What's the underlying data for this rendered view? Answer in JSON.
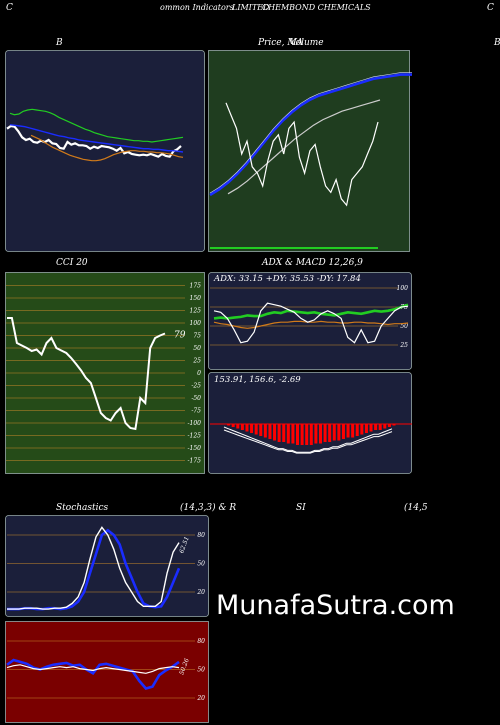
{
  "header": {
    "left_letter": "C",
    "text_a": "ommon  Indicators",
    "text_b": "LIMITED",
    "text_c": "CHEMBOND CHEMICALS",
    "right_letter": "C"
  },
  "labels": {
    "bb": "B",
    "price_ma": "Price,  MA",
    "price_overlay": "Volume",
    "right_cut": "B",
    "cci": "CCI 20",
    "adx_macd": "ADX  & MACD 12,26,9",
    "adx_values": "ADX: 33.15  +DY: 35.53  -DY: 17.84",
    "macd_values": "153.91,  156.6,  -2.69",
    "stochastics": "Stochastics",
    "stoch_params": "(14,3,3) & R",
    "si": "SI",
    "rsi_params": "(14,5",
    "watermark": "MunafaSutra.com"
  },
  "colors": {
    "navy_bg": "#1b1f3a",
    "green_bg": "#1f3d1f",
    "cci_bg": "#254b18",
    "rsi_bg": "#7a0000",
    "blue": "#1a2cff",
    "green": "#22cc22",
    "orange": "#d07a1a",
    "white": "#ffffff",
    "red": "#ff0000"
  },
  "chart_data": [
    {
      "type": "line",
      "title": "B",
      "series": [
        {
          "color": "#ffffff",
          "values": [
            118,
            114,
            115,
            122,
            131,
            135,
            133,
            138,
            139,
            136,
            138,
            135,
            140,
            141,
            147,
            148,
            138,
            142,
            140,
            143,
            143,
            144,
            148,
            145,
            147,
            144,
            145,
            146,
            148,
            151,
            147,
            155,
            153,
            156,
            157,
            158,
            157,
            158,
            156,
            158,
            160,
            156,
            159,
            160,
            152,
            149,
            144
          ]
        },
        {
          "color": "#22cc22",
          "values": [
            95,
            97,
            96,
            92,
            90,
            89,
            90,
            91,
            92,
            94,
            97,
            101,
            104,
            107,
            110,
            113,
            116,
            119,
            121,
            124,
            126,
            128,
            130,
            131,
            132,
            133,
            134,
            135,
            136,
            136,
            137,
            137,
            138,
            137,
            136,
            135,
            134,
            133,
            132,
            131
          ]
        },
        {
          "color": "#1a2cff",
          "values": [
            112,
            113,
            114,
            115,
            117,
            119,
            121,
            123,
            125,
            127,
            129,
            130,
            132,
            133,
            135,
            136,
            137,
            138,
            139,
            140,
            141,
            142,
            143,
            144,
            145,
            146,
            147,
            148,
            148,
            149,
            149,
            150,
            151,
            151,
            152,
            153
          ]
        },
        {
          "color": "#d07a1a",
          "values": [
            128,
            131,
            134,
            138,
            142,
            146,
            149,
            152,
            155,
            158,
            160,
            162,
            164,
            165,
            166,
            166,
            165,
            163,
            160,
            157,
            155,
            153,
            152,
            151,
            151,
            152,
            152,
            153,
            153,
            154,
            154,
            155,
            156,
            158,
            160,
            161
          ]
        }
      ]
    },
    {
      "type": "line",
      "title": "Price,  MA",
      "series": [
        {
          "color": "#1a2cff",
          "values": [
            100,
            96,
            91,
            85,
            78,
            70,
            62,
            54,
            47,
            41,
            36,
            32,
            29,
            27,
            25,
            23,
            21,
            19,
            17,
            16,
            15,
            14,
            14,
            14,
            13,
            13,
            12
          ]
        },
        {
          "color": "#cccccc",
          "values": [
            97,
            93,
            88,
            82,
            76,
            70,
            64,
            58,
            53,
            48,
            44,
            41,
            38,
            36,
            34,
            32,
            30
          ]
        },
        {
          "color": "#ffffff",
          "values": [
            46,
            42,
            38,
            30,
            34,
            26,
            24,
            20,
            28,
            34,
            36,
            30,
            38,
            40,
            29,
            24,
            31,
            33,
            26,
            20,
            18,
            22,
            16,
            14,
            22,
            24,
            26,
            30,
            34,
            40
          ]
        }
      ]
    },
    {
      "type": "line",
      "title": "CCI 20",
      "ylim": [
        -175,
        175
      ],
      "ticks": [
        175,
        150,
        125,
        100,
        75,
        50,
        25,
        0,
        -25,
        -50,
        -75,
        -100,
        -125,
        -150,
        -175
      ],
      "series": [
        {
          "color": "#ffffff",
          "values": [
            110,
            110,
            60,
            55,
            50,
            44,
            47,
            37,
            60,
            70,
            50,
            45,
            40,
            30,
            18,
            5,
            -10,
            -20,
            -50,
            -80,
            -90,
            -95,
            -80,
            -70,
            -100,
            -110,
            -112,
            -50,
            -60,
            50,
            70,
            75,
            79
          ]
        }
      ],
      "last_value": "79"
    },
    {
      "type": "line",
      "title": "ADX  & MACD 12,26,9",
      "ylim": [
        0,
        100
      ],
      "ticks": [
        100,
        75,
        50,
        25
      ],
      "series": [
        {
          "color": "#22cc22",
          "values": [
            60,
            61,
            60,
            61,
            62,
            64,
            63,
            63,
            66,
            68,
            67,
            70,
            69,
            68,
            67,
            68,
            66,
            65,
            64,
            66,
            68,
            67,
            66,
            68,
            70,
            69,
            70,
            72,
            75,
            78
          ]
        },
        {
          "color": "#d07a1a",
          "values": [
            55,
            53,
            52,
            50,
            48,
            47,
            48,
            50,
            52,
            54,
            55,
            55,
            56,
            56,
            55,
            55,
            56,
            55,
            55,
            54,
            54,
            55,
            55,
            54,
            54,
            53,
            52,
            53,
            53,
            54
          ]
        },
        {
          "color": "#ffffff",
          "values": [
            70,
            68,
            60,
            45,
            28,
            30,
            42,
            70,
            80,
            78,
            76,
            72,
            68,
            60,
            55,
            58,
            66,
            70,
            66,
            60,
            35,
            28,
            45,
            28,
            30,
            50,
            60,
            70,
            75,
            76
          ]
        }
      ]
    },
    {
      "type": "bar",
      "title": "MACD",
      "values": [
        0,
        -1,
        -2,
        -3,
        -4,
        -5,
        -6,
        -7,
        -8,
        -9,
        -10,
        -11,
        -12,
        -12,
        -13,
        -13,
        -14,
        -14,
        -14,
        -14,
        -13,
        -13,
        -12,
        -12,
        -11,
        -11,
        -10,
        -9,
        -9,
        -8,
        -7,
        -6,
        -5,
        -4,
        -4,
        -3,
        -2,
        -1
      ],
      "series": [
        {
          "name": "153.91",
          "color": "#ffffff"
        },
        {
          "name": "156.6",
          "color": "#ffffff"
        },
        {
          "name": "-2.69",
          "color": "#ff0000"
        }
      ]
    },
    {
      "type": "line",
      "title": "Stochastics",
      "ylim": [
        0,
        100
      ],
      "ticks": [
        80,
        50,
        20
      ],
      "series": [
        {
          "color": "#1a2cff",
          "values": [
            2,
            2,
            2,
            3,
            3,
            2,
            2,
            3,
            3,
            2,
            3,
            5,
            10,
            20,
            40,
            60,
            80,
            85,
            80,
            70,
            50,
            35,
            20,
            8,
            5,
            4,
            5,
            15,
            30,
            45
          ]
        },
        {
          "color": "#ffffff",
          "values": [
            2,
            2,
            2,
            3,
            3,
            3,
            2,
            2,
            3,
            3,
            4,
            8,
            15,
            30,
            55,
            78,
            88,
            80,
            65,
            45,
            30,
            20,
            10,
            5,
            5,
            5,
            10,
            40,
            62,
            72
          ]
        }
      ],
      "last_value": "62.51"
    },
    {
      "type": "line",
      "title": "SI",
      "ylim": [
        0,
        100
      ],
      "ticks": [
        80,
        50,
        20
      ],
      "series": [
        {
          "color": "#1a2cff",
          "values": [
            55,
            60,
            58,
            56,
            52,
            50,
            53,
            55,
            56,
            57,
            54,
            55,
            50,
            46,
            55,
            56,
            54,
            52,
            50,
            48,
            38,
            30,
            32,
            44,
            49,
            53,
            58
          ]
        },
        {
          "color": "#ffffff",
          "values": [
            52,
            54,
            55,
            53,
            51,
            50,
            51,
            52,
            53,
            52,
            53,
            51,
            50,
            49,
            51,
            52,
            51,
            50,
            49,
            48,
            47,
            46,
            48,
            51,
            52,
            53,
            52
          ]
        }
      ],
      "last_value": "50.26"
    }
  ]
}
